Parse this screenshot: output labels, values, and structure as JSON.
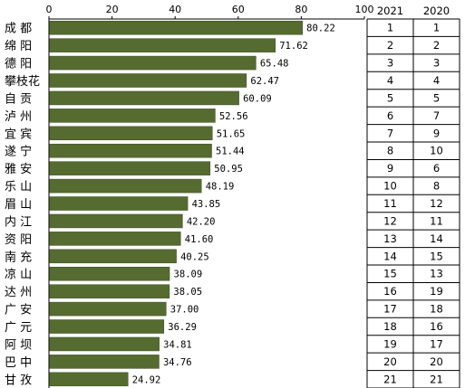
{
  "chart_data": {
    "type": "bar",
    "orientation": "horizontal",
    "xlim": [
      0,
      100
    ],
    "x_ticks": [
      "0",
      "20",
      "40",
      "60",
      "80",
      "100"
    ],
    "bar_color": "#556B2F",
    "categories": [
      "成 都",
      "绵 阳",
      "德 阳",
      "攀枝花",
      "自 贡",
      "泸 州",
      "宜 宾",
      "遂 宁",
      "雅 安",
      "乐 山",
      "眉 山",
      "内 江",
      "资 阳",
      "南 充",
      "凉 山",
      "达 州",
      "广 安",
      "广 元",
      "阿 坝",
      "巴 中",
      "甘 孜"
    ],
    "values": [
      80.22,
      71.62,
      65.48,
      62.47,
      60.09,
      52.56,
      51.65,
      51.44,
      50.95,
      48.19,
      43.85,
      42.2,
      41.6,
      40.25,
      38.09,
      38.05,
      37.0,
      36.29,
      34.81,
      34.76,
      24.92
    ],
    "value_labels": [
      "80.22",
      "71.62",
      "65.48",
      "62.47",
      "60.09",
      "52.56",
      "51.65",
      "51.44",
      "50.95",
      "48.19",
      "43.85",
      "42.20",
      "41.60",
      "40.25",
      "38.09",
      "38.05",
      "37.00",
      "36.29",
      "34.81",
      "34.76",
      "24.92"
    ],
    "rank_table": {
      "headers": [
        "2021",
        "2020"
      ],
      "rank_2021": [
        "1",
        "2",
        "3",
        "4",
        "5",
        "6",
        "7",
        "8",
        "9",
        "10",
        "11",
        "12",
        "13",
        "14",
        "15",
        "16",
        "17",
        "18",
        "19",
        "20",
        "21"
      ],
      "rank_2020": [
        "1",
        "2",
        "3",
        "4",
        "5",
        "7",
        "9",
        "10",
        "6",
        "8",
        "12",
        "11",
        "14",
        "15",
        "13",
        "19",
        "18",
        "16",
        "17",
        "20",
        "21"
      ]
    }
  }
}
